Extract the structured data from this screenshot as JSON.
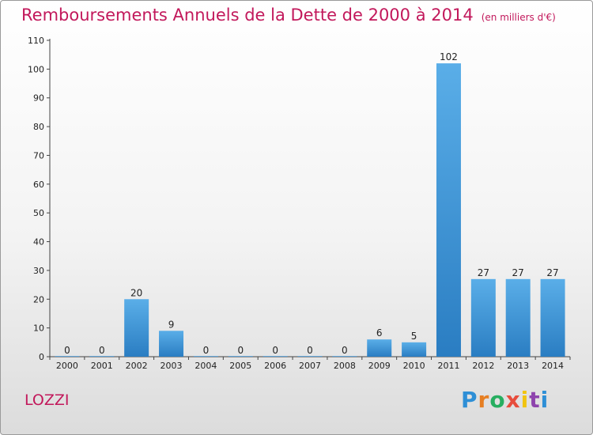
{
  "title": "Remboursements Annuels de la Dette de 2000 à 2014",
  "subtitle": "(en milliers d'€)",
  "commune": "LOZZI",
  "logo": {
    "letters": [
      "P",
      "r",
      "o",
      "x",
      "i",
      "t",
      "i"
    ],
    "colors": [
      "#2e8fd6",
      "#e67e22",
      "#27ae60",
      "#e74c3c",
      "#f1c40f",
      "#8e44ad",
      "#2e8fd6"
    ]
  },
  "colors": {
    "bar": "#3a8fd6",
    "title": "#c2185b"
  },
  "chart_data": {
    "type": "bar",
    "title": "Remboursements Annuels de la Dette de 2000 à 2014",
    "subtitle": "(en milliers d'€)",
    "categories": [
      "2000",
      "2001",
      "2002",
      "2003",
      "2004",
      "2005",
      "2006",
      "2007",
      "2008",
      "2009",
      "2010",
      "2011",
      "2012",
      "2013",
      "2014"
    ],
    "values": [
      0,
      0,
      20,
      9,
      0,
      0,
      0,
      0,
      0,
      6,
      5,
      102,
      27,
      27,
      27
    ],
    "ylim": [
      0,
      110
    ],
    "yticks": [
      0,
      10,
      20,
      30,
      40,
      50,
      60,
      70,
      80,
      90,
      100,
      110
    ],
    "xlabel": "",
    "ylabel": "",
    "grid": false,
    "legend": "none"
  }
}
